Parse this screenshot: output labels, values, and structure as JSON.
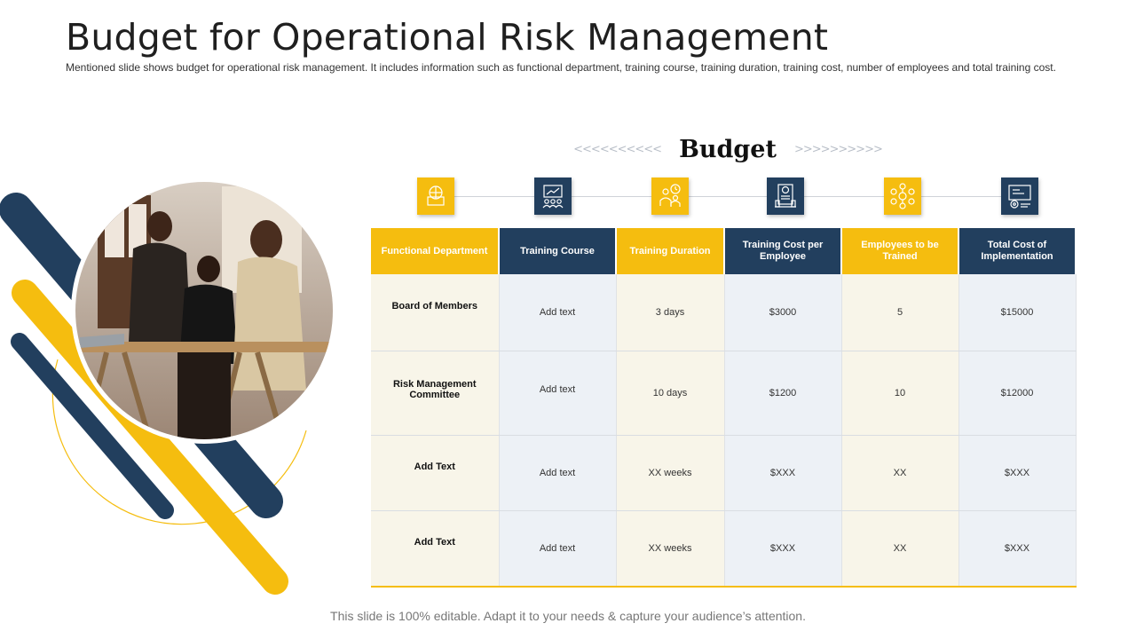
{
  "slide": {
    "title": "Budget for Operational Risk Management",
    "subtitle": "Mentioned slide shows budget for operational risk management. It includes information such as functional department, training course, training duration, training cost, number of employees and total training cost.",
    "footer": "This slide is 100% editable. Adapt it to your needs & capture your audience’s attention."
  },
  "budget": {
    "heading": "Budget",
    "chevrons_left": "<<<<<<<<<<",
    "chevrons_right": ">>>>>>>>>>",
    "icons": [
      "department-icon",
      "training-presentation-icon",
      "duration-team-icon",
      "cost-document-icon",
      "employees-network-icon",
      "implementation-process-icon"
    ]
  },
  "table": {
    "headers": [
      "Functional Department",
      "Training Course",
      "Training Duration",
      "Training Cost per Employee",
      "Employees to be Trained",
      "Total Cost of Implementation"
    ],
    "rows": [
      [
        "Board of Members",
        "Add text",
        "3 days",
        "$3000",
        "5",
        "$15000"
      ],
      [
        "Risk Management Committee",
        "Add text",
        "10 days",
        "$1200",
        "10",
        "$12000"
      ],
      [
        "Add Text",
        "Add text",
        "XX weeks",
        "$XXX",
        "XX",
        "$XXX"
      ],
      [
        "Add Text",
        "Add text",
        "XX weeks",
        "$XXX",
        "XX",
        "$XXX"
      ]
    ]
  },
  "colors": {
    "accent_yellow": "#f5bd0f",
    "accent_navy": "#223f5e",
    "cell_cream": "#f8f5e9",
    "cell_light_blue": "#edf1f6"
  }
}
